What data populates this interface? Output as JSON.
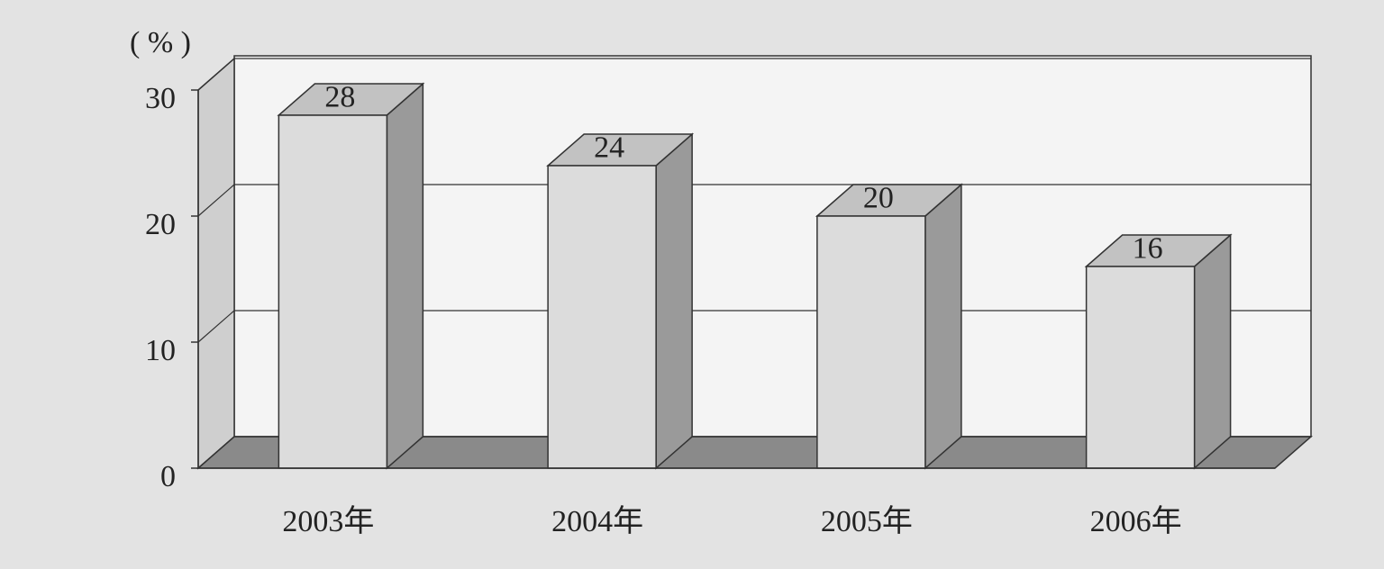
{
  "chart_data": {
    "type": "bar3d",
    "y_axis_label": "( % )",
    "categories": [
      "2003年",
      "2004年",
      "2005年",
      "2006年"
    ],
    "values": [
      28,
      24,
      20,
      16
    ],
    "ylim": [
      0,
      30
    ],
    "yticks": [
      0,
      10,
      20,
      30
    ],
    "grid": true
  }
}
